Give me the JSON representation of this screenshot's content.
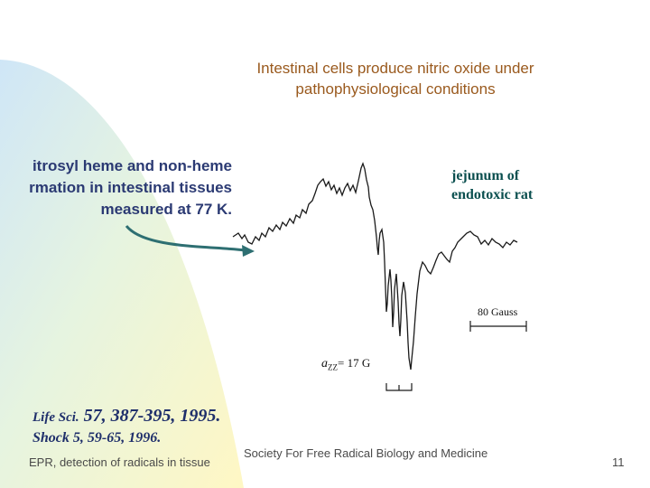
{
  "slide": {
    "title_line1": "Intestinal cells produce nitric oxide under",
    "title_line2": "pathophysiological conditions",
    "left_label_line1": "itrosyl heme and non-heme",
    "left_label_line2": "rmation in intestinal tissues",
    "left_label_line3": "measured at 77 K.",
    "sample_line1": "jejunum of",
    "sample_line2": "endotoxic rat",
    "scale_label": "80 Gauss",
    "azz_symbol": "a",
    "azz_subscript": "ZZ",
    "azz_value": "= 17 G",
    "ref1_journal": "Life Sci.",
    "ref1_detail": " 57, 387-395, 1995.",
    "ref2": "Shock 5, 59-65, 1996.",
    "footer_left": "EPR, detection of radicals in tissue",
    "footer_center": "Society For Free Radical Biology and Medicine",
    "page_number": "11"
  },
  "colors": {
    "title": "#9a5a1e",
    "left_label": "#2b3a73",
    "sample_label": "#0a4f4f",
    "arrow": "#2e6f72",
    "reference": "#1f2f6b",
    "footer": "#4a4a4a"
  },
  "icons": {
    "arrow": "curved-arrow-icon"
  }
}
